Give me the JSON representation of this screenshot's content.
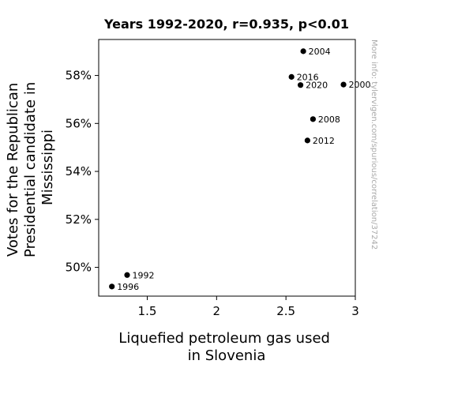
{
  "chart_data": {
    "type": "scatter",
    "title": "Years 1992-2020, r=0.935, p<0.01",
    "xlabel": [
      "Liquefied petroleum gas used",
      "in Slovenia"
    ],
    "ylabel": [
      "Votes for the Republican",
      "Presidential candidate in",
      "Mississippi"
    ],
    "xlim": [
      1.15,
      3.0
    ],
    "ylim": [
      48.8,
      59.5
    ],
    "x_ticks": [
      1.5,
      2,
      2.5,
      3
    ],
    "x_tick_labels": [
      "1.5",
      "2",
      "2.5",
      "3"
    ],
    "y_ticks": [
      50,
      52,
      54,
      56,
      58
    ],
    "y_tick_labels": [
      "50%",
      "52%",
      "54%",
      "56%",
      "58%"
    ],
    "grid": false,
    "points": [
      {
        "label": "1992",
        "x": 1.355,
        "y": 49.68
      },
      {
        "label": "1996",
        "x": 1.245,
        "y": 49.2
      },
      {
        "label": "2000",
        "x": 2.915,
        "y": 57.62
      },
      {
        "label": "2004",
        "x": 2.625,
        "y": 59.01
      },
      {
        "label": "2008",
        "x": 2.695,
        "y": 56.18
      },
      {
        "label": "2012",
        "x": 2.655,
        "y": 55.29
      },
      {
        "label": "2016",
        "x": 2.54,
        "y": 57.94
      },
      {
        "label": "2020",
        "x": 2.605,
        "y": 57.6
      }
    ],
    "marker_color": "#000000"
  },
  "watermark": "More info: tylervigen.com/spurious/correlation/37242"
}
